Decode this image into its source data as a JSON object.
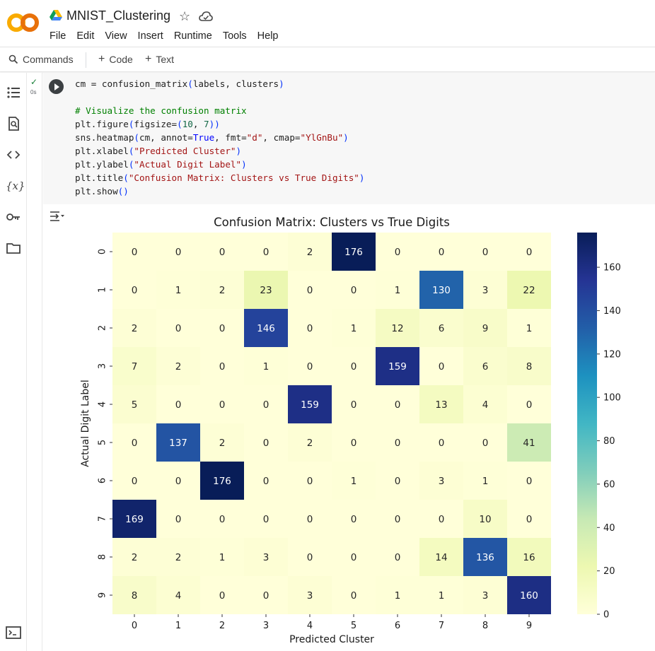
{
  "header": {
    "title": "MNIST_Clustering",
    "logo_text": "CO",
    "menu": [
      "File",
      "Edit",
      "View",
      "Insert",
      "Runtime",
      "Tools",
      "Help"
    ]
  },
  "toolbar": {
    "commands_label": "Commands",
    "add_code_label": "Code",
    "add_text_label": "Text"
  },
  "cell": {
    "status": "✓",
    "exec_time": "0s",
    "code_lines": [
      "cm = confusion_matrix(labels, clusters)",
      "",
      "# Visualize the confusion matrix",
      "plt.figure(figsize=(10, 7))",
      "sns.heatmap(cm, annot=True, fmt=\"d\", cmap=\"YlGnBu\")",
      "plt.xlabel(\"Predicted Cluster\")",
      "plt.ylabel(\"Actual Digit Label\")",
      "plt.title(\"Confusion Matrix: Clusters vs True Digits\")",
      "plt.show()"
    ]
  },
  "icons": {
    "sidebar": [
      "toc-icon",
      "find-icon",
      "code-snippets-icon",
      "variables-icon",
      "secrets-icon",
      "files-icon"
    ],
    "bottom": "terminal-icon"
  },
  "chart_data": {
    "type": "heatmap",
    "title": "Confusion Matrix: Clusters vs True Digits",
    "xlabel": "Predicted Cluster",
    "ylabel": "Actual Digit Label",
    "x_categories": [
      "0",
      "1",
      "2",
      "3",
      "4",
      "5",
      "6",
      "7",
      "8",
      "9"
    ],
    "y_categories": [
      "0",
      "1",
      "2",
      "3",
      "4",
      "5",
      "6",
      "7",
      "8",
      "9"
    ],
    "values": [
      [
        0,
        0,
        0,
        0,
        2,
        176,
        0,
        0,
        0,
        0
      ],
      [
        0,
        1,
        2,
        23,
        0,
        0,
        1,
        130,
        3,
        22
      ],
      [
        2,
        0,
        0,
        146,
        0,
        1,
        12,
        6,
        9,
        1
      ],
      [
        7,
        2,
        0,
        1,
        0,
        0,
        159,
        0,
        6,
        8
      ],
      [
        5,
        0,
        0,
        0,
        159,
        0,
        0,
        13,
        4,
        0
      ],
      [
        0,
        137,
        2,
        0,
        2,
        0,
        0,
        0,
        0,
        41
      ],
      [
        0,
        0,
        176,
        0,
        0,
        1,
        0,
        3,
        1,
        0
      ],
      [
        169,
        0,
        0,
        0,
        0,
        0,
        0,
        0,
        10,
        0
      ],
      [
        2,
        2,
        1,
        3,
        0,
        0,
        0,
        14,
        136,
        16
      ],
      [
        8,
        4,
        0,
        0,
        3,
        0,
        1,
        1,
        3,
        160
      ]
    ],
    "colormap": "YlGnBu",
    "vmin": 0,
    "vmax": 176,
    "colorbar_ticks": [
      0,
      20,
      40,
      60,
      80,
      100,
      120,
      140,
      160
    ]
  }
}
